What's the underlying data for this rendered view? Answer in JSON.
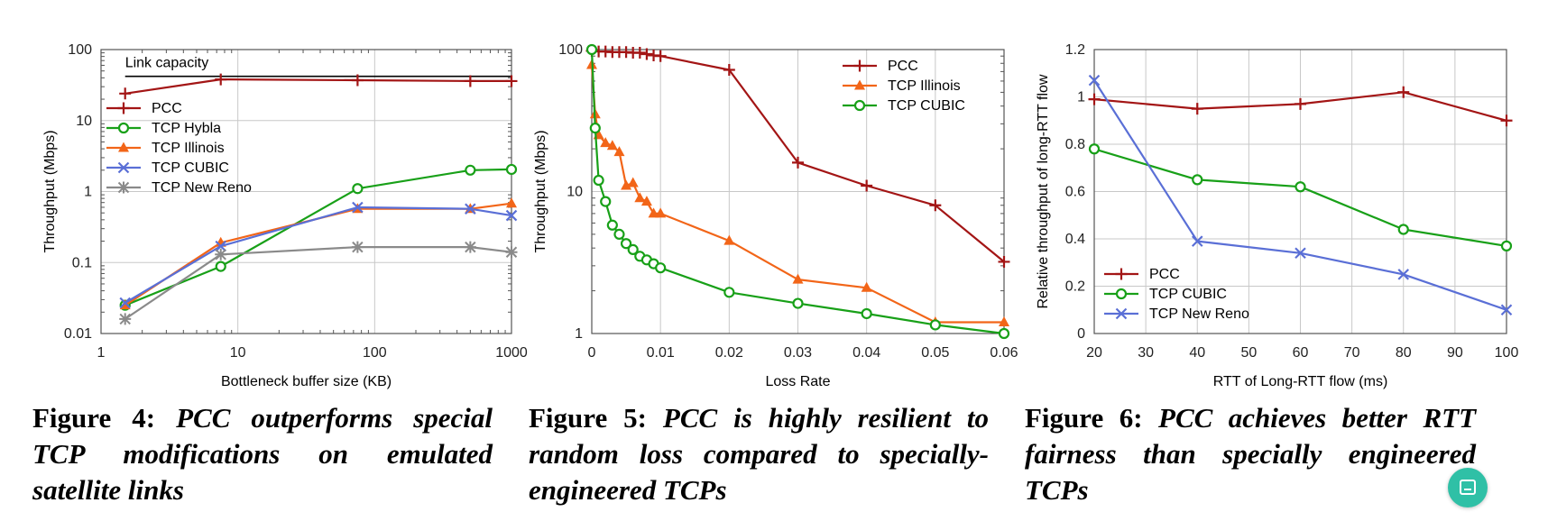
{
  "colors": {
    "PCC": "#a31515",
    "TCP Hybla": "#18a018",
    "TCP Illinois": "#f26518",
    "TCP CUBIC": "#18a018",
    "TCP CUBIC (fig6)": "#18a018",
    "TCP New Reno": "#8a8a8a",
    "TCP New Reno (fig6)": "#5a6fd6",
    "TCP CUBIC (fig4)": "#5a6fd6"
  },
  "captions": [
    {
      "label": "Figure 4:",
      "text": "PCC outperforms special TCP modifications on emulated satellite links"
    },
    {
      "label": "Figure 5:",
      "text": "PCC is highly resilient to random loss compared to specially-engineered TCPs"
    },
    {
      "label": "Figure 6:",
      "text": "PCC achieves better RTT fairness than specially engineered TCPs"
    }
  ],
  "chart_data": [
    {
      "type": "line",
      "xlabel": "Bottleneck buffer size (KB)",
      "ylabel": "Throughput (Mbps)",
      "xscale": "log",
      "yscale": "log",
      "xlim": [
        1,
        1000
      ],
      "ylim": [
        0.01,
        100
      ],
      "xticks": [
        1,
        10,
        100,
        1000
      ],
      "xticklabels": [
        "1",
        "10",
        "100",
        "1000"
      ],
      "yticks": [
        0.01,
        0.1,
        1,
        10,
        100
      ],
      "yticklabels": [
        "0.01",
        "0.1",
        "1",
        "10",
        "100"
      ],
      "grid": true,
      "legend": "left",
      "annotation": {
        "text": "Link capacity",
        "value": 42
      },
      "series": [
        {
          "name": "PCC",
          "marker": "plus",
          "colorKey": "PCC",
          "x": [
            1.5,
            7.5,
            75,
            500,
            1000
          ],
          "y": [
            24,
            38,
            37,
            36,
            36
          ]
        },
        {
          "name": "TCP Hybla",
          "marker": "circle",
          "colorKey": "TCP Hybla",
          "x": [
            1.5,
            7.5,
            75,
            500,
            1000
          ],
          "y": [
            0.025,
            0.088,
            1.1,
            2.0,
            2.05
          ]
        },
        {
          "name": "TCP Illinois",
          "marker": "triangle",
          "colorKey": "TCP Illinois",
          "x": [
            1.5,
            7.5,
            75,
            500,
            1000
          ],
          "y": [
            0.025,
            0.19,
            0.57,
            0.57,
            0.68
          ]
        },
        {
          "name": "TCP CUBIC",
          "marker": "x",
          "colorKey": "TCP CUBIC (fig4)",
          "x": [
            1.5,
            7.5,
            75,
            500,
            1000
          ],
          "y": [
            0.027,
            0.17,
            0.6,
            0.57,
            0.46
          ]
        },
        {
          "name": "TCP New Reno",
          "marker": "star",
          "colorKey": "TCP New Reno",
          "x": [
            1.5,
            7.5,
            75,
            500,
            1000
          ],
          "y": [
            0.016,
            0.13,
            0.165,
            0.165,
            0.14
          ]
        }
      ]
    },
    {
      "type": "line",
      "xlabel": "Loss Rate",
      "ylabel": "Throughput (Mbps)",
      "xscale": "linear",
      "yscale": "log",
      "xlim": [
        0,
        0.06
      ],
      "ylim": [
        1,
        100
      ],
      "xticks": [
        0,
        0.01,
        0.02,
        0.03,
        0.04,
        0.05,
        0.06
      ],
      "xticklabels": [
        "0",
        "0.01",
        "0.02",
        "0.03",
        "0.04",
        "0.05",
        "0.06"
      ],
      "yticks": [
        1,
        10,
        100
      ],
      "yticklabels": [
        "1",
        "10",
        "100"
      ],
      "grid": true,
      "legend": "top-right",
      "series": [
        {
          "name": "PCC",
          "marker": "plus",
          "colorKey": "PCC",
          "x": [
            0,
            0.001,
            0.002,
            0.003,
            0.004,
            0.005,
            0.006,
            0.007,
            0.008,
            0.009,
            0.01,
            0.02,
            0.03,
            0.04,
            0.05,
            0.06
          ],
          "y": [
            98,
            97,
            97,
            96,
            96,
            96,
            95,
            95,
            93,
            91,
            90,
            72,
            16,
            11,
            8,
            3.2
          ]
        },
        {
          "name": "TCP Illinois",
          "marker": "triangle",
          "colorKey": "TCP Illinois",
          "x": [
            0,
            0.0005,
            0.001,
            0.002,
            0.003,
            0.004,
            0.005,
            0.006,
            0.007,
            0.008,
            0.009,
            0.01,
            0.02,
            0.03,
            0.04,
            0.05,
            0.06
          ],
          "y": [
            78,
            35,
            25,
            22,
            21,
            19,
            11,
            11.5,
            9,
            8.5,
            7,
            7,
            4.5,
            2.4,
            2.1,
            1.2,
            1.2
          ]
        },
        {
          "name": "TCP CUBIC",
          "marker": "circle",
          "colorKey": "TCP CUBIC",
          "x": [
            0,
            0.0005,
            0.001,
            0.002,
            0.003,
            0.004,
            0.005,
            0.006,
            0.007,
            0.008,
            0.009,
            0.01,
            0.02,
            0.03,
            0.04,
            0.05,
            0.06
          ],
          "y": [
            100,
            28,
            12,
            8.5,
            5.8,
            5,
            4.3,
            3.9,
            3.5,
            3.3,
            3.1,
            2.9,
            1.95,
            1.63,
            1.38,
            1.15,
            1.0
          ]
        }
      ]
    },
    {
      "type": "line",
      "xlabel": "RTT of Long-RTT flow (ms)",
      "ylabel": "Relative throughput of long-RTT flow",
      "xscale": "linear",
      "yscale": "linear",
      "xlim": [
        20,
        100
      ],
      "ylim": [
        0,
        1.2
      ],
      "xticks": [
        20,
        30,
        40,
        50,
        60,
        70,
        80,
        90,
        100
      ],
      "xticklabels": [
        "20",
        "30",
        "40",
        "50",
        "60",
        "70",
        "80",
        "90",
        "100"
      ],
      "yticks": [
        0,
        0.2,
        0.4,
        0.6,
        0.8,
        1,
        1.2
      ],
      "yticklabels": [
        "0",
        "0.2",
        "0.4",
        "0.6",
        "0.8",
        "1",
        "1.2"
      ],
      "grid": true,
      "legend": "bottom-left",
      "series": [
        {
          "name": "PCC",
          "marker": "plus",
          "colorKey": "PCC",
          "x": [
            20,
            40,
            60,
            80,
            100
          ],
          "y": [
            0.99,
            0.95,
            0.97,
            1.02,
            0.9
          ]
        },
        {
          "name": "TCP CUBIC",
          "marker": "circle",
          "colorKey": "TCP CUBIC (fig6)",
          "x": [
            20,
            40,
            60,
            80,
            100
          ],
          "y": [
            0.78,
            0.65,
            0.62,
            0.44,
            0.37
          ]
        },
        {
          "name": "TCP New Reno",
          "marker": "x",
          "colorKey": "TCP New Reno (fig6)",
          "x": [
            20,
            40,
            60,
            80,
            100
          ],
          "y": [
            1.07,
            0.39,
            0.34,
            0.25,
            0.1
          ]
        }
      ]
    }
  ]
}
